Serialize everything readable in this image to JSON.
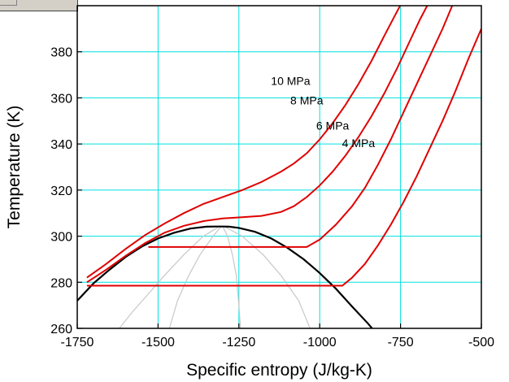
{
  "chart_data": {
    "type": "line",
    "title": "",
    "xlabel": "Specific entropy (J/kg-K)",
    "ylabel": "Temperature (K)",
    "xlim": [
      -1750,
      -500
    ],
    "ylim": [
      260,
      400
    ],
    "xticks": [
      -1750,
      -1500,
      -1250,
      -1000,
      -750,
      -500
    ],
    "yticks": [
      260,
      280,
      300,
      320,
      340,
      360,
      380
    ],
    "grid": true,
    "colors": {
      "isobar": "#e00000",
      "saturation_dome": "#000000",
      "quality_lines": "#c8c8c8",
      "grid": "#00e0e0"
    },
    "saturation_dome": {
      "x": [
        -1750,
        -1700,
        -1650,
        -1600,
        -1550,
        -1500,
        -1450,
        -1400,
        -1350,
        -1320,
        -1300,
        -1280,
        -1250,
        -1200,
        -1150,
        -1100,
        -1050,
        -1000,
        -950,
        -900,
        -850,
        -820
      ],
      "y": [
        272,
        279.5,
        285.5,
        291,
        295.5,
        299,
        301.5,
        303.3,
        304.1,
        304.2,
        304.2,
        304.1,
        303.6,
        301.9,
        299,
        295,
        290,
        284,
        277.2,
        269.5,
        262,
        257
      ]
    },
    "quality_lines": [
      {
        "x": [
          -1310,
          -1360,
          -1420,
          -1480,
          -1530,
          -1580,
          -1620
        ],
        "y": [
          304.2,
          300,
          292,
          283,
          275,
          267,
          260
        ]
      },
      {
        "x": [
          -1305,
          -1330,
          -1370,
          -1405,
          -1440,
          -1465
        ],
        "y": [
          304.2,
          300,
          292,
          283,
          272,
          260
        ]
      },
      {
        "x": [
          -1300,
          -1285,
          -1270,
          -1258,
          -1250,
          -1245
        ],
        "y": [
          304.2,
          300,
          292,
          283,
          270,
          260
        ]
      },
      {
        "x": [
          -1295,
          -1240,
          -1175,
          -1120,
          -1065,
          -1030
        ],
        "y": [
          304.2,
          300,
          292,
          283,
          272,
          260
        ]
      }
    ],
    "series": [
      {
        "name": "4 MPa",
        "x": [
          -1720,
          -930,
          -900,
          -860,
          -820,
          -780,
          -740,
          -700,
          -660,
          -620,
          -580,
          -540,
          -500
        ],
        "y": [
          278.5,
          278.5,
          282,
          288,
          296,
          305,
          315,
          326,
          338,
          350,
          363,
          377,
          390
        ]
      },
      {
        "name": "6 MPa",
        "x": [
          -1530,
          -1040,
          -1000,
          -950,
          -900,
          -860,
          -820,
          -780,
          -740,
          -700,
          -660,
          -620,
          -590
        ],
        "y": [
          295.3,
          295.3,
          298.5,
          305,
          313,
          321,
          331,
          342,
          354,
          366,
          378,
          390,
          400
        ]
      },
      {
        "name": "8 MPa",
        "x": [
          -1720,
          -1660,
          -1600,
          -1540,
          -1480,
          -1420,
          -1360,
          -1300,
          -1240,
          -1180,
          -1120,
          -1080,
          -1040,
          -1000,
          -960,
          -920,
          -880,
          -840,
          -800,
          -760,
          -720,
          -690,
          -660
        ],
        "y": [
          280,
          285.5,
          291.5,
          297,
          301.5,
          304.5,
          306.5,
          307.7,
          308.2,
          308.8,
          310.5,
          313,
          317,
          322,
          328,
          335,
          343,
          352,
          362,
          373,
          385,
          394,
          402
        ]
      },
      {
        "name": "10 MPa",
        "x": [
          -1720,
          -1660,
          -1600,
          -1540,
          -1480,
          -1420,
          -1360,
          -1300,
          -1240,
          -1180,
          -1120,
          -1080,
          -1040,
          -1000,
          -960,
          -920,
          -880,
          -840,
          -800,
          -770,
          -740,
          -715
        ],
        "y": [
          282,
          288,
          294.5,
          300.5,
          305.5,
          310,
          314,
          317,
          320,
          323.5,
          328,
          331.5,
          336,
          342,
          349,
          357,
          366,
          376,
          387,
          395,
          403,
          410
        ]
      }
    ],
    "series_labels": [
      {
        "text": "10 MPa",
        "x": -1090,
        "y": 367
      },
      {
        "text": "8 MPa",
        "x": -1040,
        "y": 358.5
      },
      {
        "text": "6 MPa",
        "x": -960,
        "y": 347.5
      },
      {
        "text": "4 MPa",
        "x": -880,
        "y": 340
      }
    ]
  }
}
